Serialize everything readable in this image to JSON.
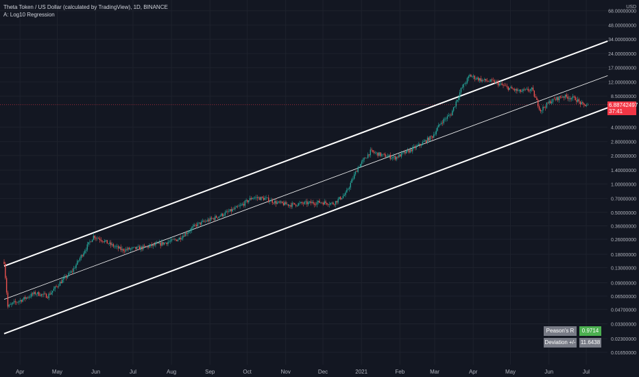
{
  "legend": {
    "title": "Theta Token / US Dollar (calculated by TradingView), 1D, BINANCE",
    "indicator": "A: Log10 Regression"
  },
  "currency_label": "USD",
  "price_tag": {
    "price": "6.88742497",
    "countdown": "37:41"
  },
  "stats": {
    "r_label": "Peason's R",
    "r_value": "0.9714",
    "dev_label": "Deviation +/-",
    "dev_value": "11.6438"
  },
  "colors": {
    "background": "#131722",
    "up": "#26a69a",
    "down": "#ef5350",
    "channel": "#ffffff",
    "price_tag": "#f23645"
  },
  "chart_data": {
    "type": "candlestick",
    "title": "Theta Token / US Dollar (calculated by TradingView), 1D, BINANCE",
    "scale": "log",
    "ylim": [
      0.0142,
      80
    ],
    "y_ticks": [
      68,
      48,
      34,
      24,
      17,
      12,
      8.5,
      4,
      2.8,
      2,
      1.4,
      1,
      0.7,
      0.5,
      0.36,
      0.26,
      0.18,
      0.13,
      0.09,
      0.065,
      0.047,
      0.033,
      0.023,
      0.0165
    ],
    "y_tick_labels": [
      "68.00000000",
      "48.00000000",
      "34.00000000",
      "24.00000000",
      "17.00000000",
      "12.00000000",
      "8.50000000",
      "4.00000000",
      "2.80000000",
      "2.00000000",
      "1.40000000",
      "1.00000000",
      "0.70000000",
      "0.50000000",
      "0.36000000",
      "0.26000000",
      "0.18000000",
      "0.13000000",
      "0.09000000",
      "0.06500000",
      "0.04700000",
      "0.03300000",
      "0.02300000",
      "0.01650000"
    ],
    "x_ticks": [
      "Apr",
      "May",
      "Jun",
      "Jul",
      "Aug",
      "Sep",
      "Oct",
      "Nov",
      "Dec",
      "2021",
      "Feb",
      "Mar",
      "Apr",
      "May",
      "Jun",
      "Jul"
    ],
    "x_tick_day": [
      15,
      45,
      76,
      106,
      137,
      168,
      198,
      229,
      259,
      290,
      321,
      349,
      380,
      410,
      441,
      471
    ],
    "last_price": 6.88742497,
    "price_path": [
      [
        0,
        0.15
      ],
      [
        3,
        0.05
      ],
      [
        8,
        0.055
      ],
      [
        15,
        0.06
      ],
      [
        25,
        0.07
      ],
      [
        35,
        0.065
      ],
      [
        45,
        0.09
      ],
      [
        55,
        0.12
      ],
      [
        65,
        0.2
      ],
      [
        72,
        0.28
      ],
      [
        78,
        0.26
      ],
      [
        85,
        0.23
      ],
      [
        95,
        0.2
      ],
      [
        110,
        0.21
      ],
      [
        125,
        0.23
      ],
      [
        140,
        0.26
      ],
      [
        155,
        0.37
      ],
      [
        170,
        0.44
      ],
      [
        180,
        0.5
      ],
      [
        190,
        0.58
      ],
      [
        200,
        0.72
      ],
      [
        210,
        0.7
      ],
      [
        220,
        0.63
      ],
      [
        230,
        0.6
      ],
      [
        240,
        0.62
      ],
      [
        255,
        0.64
      ],
      [
        265,
        0.62
      ],
      [
        275,
        0.78
      ],
      [
        285,
        1.5
      ],
      [
        295,
        2.2
      ],
      [
        305,
        2.0
      ],
      [
        315,
        1.9
      ],
      [
        325,
        2.2
      ],
      [
        335,
        2.6
      ],
      [
        345,
        3.2
      ],
      [
        352,
        4.5
      ],
      [
        360,
        5.5
      ],
      [
        368,
        10
      ],
      [
        375,
        14
      ],
      [
        385,
        12.5
      ],
      [
        395,
        12
      ],
      [
        405,
        10.5
      ],
      [
        415,
        9.5
      ],
      [
        425,
        10
      ],
      [
        432,
        6
      ],
      [
        440,
        7.5
      ],
      [
        450,
        8.5
      ],
      [
        460,
        8
      ],
      [
        466,
        6.8
      ],
      [
        470,
        6.89
      ]
    ],
    "regression": {
      "type": "log10",
      "center_line": [
        [
          0,
          0.06
        ],
        [
          485,
          14
        ]
      ],
      "upper_line": [
        [
          0,
          0.135
        ],
        [
          485,
          32.5
        ]
      ],
      "lower_line": [
        [
          0,
          0.026
        ],
        [
          485,
          6.4
        ]
      ],
      "pearsons_r": 0.9714,
      "deviation": 11.6438
    }
  }
}
